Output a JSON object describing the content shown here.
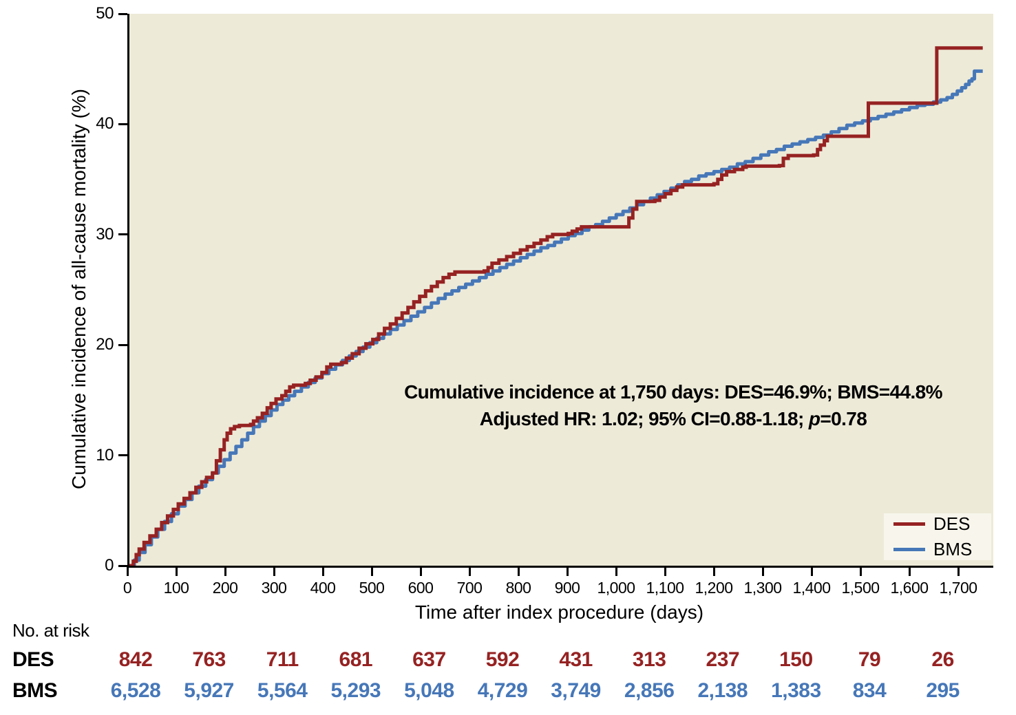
{
  "figure": {
    "background": "#ffffff",
    "plot_background": "#edead8",
    "legend_background": "#f8f6ec",
    "axis_color": "#000000"
  },
  "chart_data": {
    "type": "line",
    "subtype": "step-function-cumulative-incidence",
    "title": "",
    "xlabel": "Time after index procedure (days)",
    "ylabel": "Cumulative incidence of all-cause mortality (%)",
    "xlim": [
      0,
      1768
    ],
    "ylim": [
      0,
      50
    ],
    "grid": false,
    "legend_position": "bottom-right",
    "x_ticks": [
      {
        "value": 0,
        "label": "0"
      },
      {
        "value": 100,
        "label": "100"
      },
      {
        "value": 200,
        "label": "200"
      },
      {
        "value": 300,
        "label": "300"
      },
      {
        "value": 400,
        "label": "400"
      },
      {
        "value": 500,
        "label": "500"
      },
      {
        "value": 600,
        "label": "600"
      },
      {
        "value": 700,
        "label": "700"
      },
      {
        "value": 800,
        "label": "800"
      },
      {
        "value": 900,
        "label": "900"
      },
      {
        "value": 1000,
        "label": "1,000"
      },
      {
        "value": 1100,
        "label": "1,100"
      },
      {
        "value": 1200,
        "label": "1,200"
      },
      {
        "value": 1300,
        "label": "1,300"
      },
      {
        "value": 1400,
        "label": "1,400"
      },
      {
        "value": 1500,
        "label": "1,500"
      },
      {
        "value": 1600,
        "label": "1,600"
      },
      {
        "value": 1700,
        "label": "1,700"
      }
    ],
    "y_ticks": [
      {
        "value": 0,
        "label": "0"
      },
      {
        "value": 10,
        "label": "10"
      },
      {
        "value": 20,
        "label": "20"
      },
      {
        "value": 30,
        "label": "30"
      },
      {
        "value": 40,
        "label": "40"
      },
      {
        "value": 50,
        "label": "50"
      }
    ],
    "annotation": {
      "line1": "Cumulative incidence at 1,750 days: DES=46.9%; BMS=44.8%",
      "line2_prefix": "Adjusted HR: 1.02; 95% CI=0.88-1.18; ",
      "line2_italic": "p",
      "line2_suffix": "=0.78"
    },
    "series": [
      {
        "name": "DES",
        "color": "#962222",
        "stroke_width": 5,
        "points": [
          [
            0,
            0
          ],
          [
            8,
            0.4
          ],
          [
            14,
            1.0
          ],
          [
            20,
            1.5
          ],
          [
            30,
            2.1
          ],
          [
            42,
            2.7
          ],
          [
            55,
            3.3
          ],
          [
            66,
            3.9
          ],
          [
            78,
            4.5
          ],
          [
            90,
            5.1
          ],
          [
            100,
            5.6
          ],
          [
            112,
            6.1
          ],
          [
            124,
            6.6
          ],
          [
            136,
            7.1
          ],
          [
            148,
            7.6
          ],
          [
            158,
            8.0
          ],
          [
            170,
            8.4
          ],
          [
            178,
            9.5
          ],
          [
            186,
            10.5
          ],
          [
            194,
            11.4
          ],
          [
            200,
            12.0
          ],
          [
            207,
            12.4
          ],
          [
            215,
            12.6
          ],
          [
            225,
            12.7
          ],
          [
            248,
            12.8
          ],
          [
            254,
            13.1
          ],
          [
            262,
            13.4
          ],
          [
            272,
            13.8
          ],
          [
            282,
            14.3
          ],
          [
            290,
            14.7
          ],
          [
            300,
            15.1
          ],
          [
            312,
            15.4
          ],
          [
            320,
            15.8
          ],
          [
            328,
            16.2
          ],
          [
            336,
            16.35
          ],
          [
            360,
            16.5
          ],
          [
            370,
            16.8
          ],
          [
            382,
            17.1
          ],
          [
            394,
            17.5
          ],
          [
            404,
            18.0
          ],
          [
            412,
            18.25
          ],
          [
            434,
            18.4
          ],
          [
            444,
            18.8
          ],
          [
            456,
            19.2
          ],
          [
            470,
            19.7
          ],
          [
            484,
            20.1
          ],
          [
            498,
            20.5
          ],
          [
            510,
            21.0
          ],
          [
            522,
            21.5
          ],
          [
            534,
            21.9
          ],
          [
            546,
            22.4
          ],
          [
            558,
            22.9
          ],
          [
            570,
            23.4
          ],
          [
            582,
            23.9
          ],
          [
            594,
            24.4
          ],
          [
            606,
            24.9
          ],
          [
            618,
            25.3
          ],
          [
            630,
            25.7
          ],
          [
            642,
            26.1
          ],
          [
            654,
            26.4
          ],
          [
            666,
            26.6
          ],
          [
            726,
            26.7
          ],
          [
            734,
            27.0
          ],
          [
            742,
            27.4
          ],
          [
            756,
            27.7
          ],
          [
            772,
            28.0
          ],
          [
            786,
            28.3
          ],
          [
            800,
            28.6
          ],
          [
            814,
            28.9
          ],
          [
            828,
            29.2
          ],
          [
            842,
            29.5
          ],
          [
            855,
            29.8
          ],
          [
            866,
            30.0
          ],
          [
            898,
            30.1
          ],
          [
            906,
            30.3
          ],
          [
            916,
            30.5
          ],
          [
            925,
            30.7
          ],
          [
            1018,
            30.7
          ],
          [
            1022,
            31.5
          ],
          [
            1030,
            32.3
          ],
          [
            1038,
            33.0
          ],
          [
            1075,
            33.1
          ],
          [
            1085,
            33.4
          ],
          [
            1096,
            33.7
          ],
          [
            1108,
            34.0
          ],
          [
            1120,
            34.3
          ],
          [
            1132,
            34.5
          ],
          [
            1196,
            34.6
          ],
          [
            1204,
            35.0
          ],
          [
            1212,
            35.4
          ],
          [
            1222,
            35.7
          ],
          [
            1238,
            35.9
          ],
          [
            1255,
            36.1
          ],
          [
            1262,
            36.2
          ],
          [
            1330,
            36.25
          ],
          [
            1338,
            36.9
          ],
          [
            1348,
            37.15
          ],
          [
            1400,
            37.2
          ],
          [
            1408,
            37.7
          ],
          [
            1414,
            38.1
          ],
          [
            1422,
            38.5
          ],
          [
            1428,
            38.9
          ],
          [
            1510,
            38.9
          ],
          [
            1512,
            41.9
          ],
          [
            1650,
            41.9
          ],
          [
            1652,
            46.9
          ],
          [
            1746,
            46.9
          ]
        ]
      },
      {
        "name": "BMS",
        "color": "#4677b8",
        "stroke_width": 5,
        "points": [
          [
            0,
            0
          ],
          [
            10,
            0.5
          ],
          [
            20,
            1.2
          ],
          [
            32,
            1.9
          ],
          [
            45,
            2.6
          ],
          [
            58,
            3.3
          ],
          [
            72,
            4.0
          ],
          [
            86,
            4.7
          ],
          [
            100,
            5.4
          ],
          [
            114,
            6.0
          ],
          [
            128,
            6.6
          ],
          [
            142,
            7.2
          ],
          [
            156,
            7.8
          ],
          [
            170,
            8.4
          ],
          [
            182,
            9.0
          ],
          [
            194,
            9.6
          ],
          [
            206,
            10.2
          ],
          [
            218,
            10.8
          ],
          [
            230,
            11.4
          ],
          [
            242,
            12.0
          ],
          [
            254,
            12.6
          ],
          [
            266,
            13.1
          ],
          [
            278,
            13.6
          ],
          [
            290,
            14.1
          ],
          [
            302,
            14.6
          ],
          [
            314,
            15.0
          ],
          [
            326,
            15.4
          ],
          [
            338,
            15.8
          ],
          [
            352,
            16.2
          ],
          [
            366,
            16.6
          ],
          [
            380,
            17.0
          ],
          [
            394,
            17.4
          ],
          [
            408,
            17.8
          ],
          [
            422,
            18.2
          ],
          [
            436,
            18.6
          ],
          [
            450,
            19.0
          ],
          [
            464,
            19.4
          ],
          [
            478,
            19.8
          ],
          [
            492,
            20.2
          ],
          [
            506,
            20.6
          ],
          [
            520,
            21.0
          ],
          [
            534,
            21.4
          ],
          [
            548,
            21.8
          ],
          [
            562,
            22.2
          ],
          [
            576,
            22.6
          ],
          [
            590,
            23.0
          ],
          [
            604,
            23.4
          ],
          [
            618,
            23.8
          ],
          [
            632,
            24.2
          ],
          [
            646,
            24.6
          ],
          [
            660,
            24.9
          ],
          [
            674,
            25.2
          ],
          [
            688,
            25.5
          ],
          [
            702,
            25.8
          ],
          [
            716,
            26.1
          ],
          [
            730,
            26.4
          ],
          [
            744,
            26.7
          ],
          [
            758,
            27.0
          ],
          [
            772,
            27.3
          ],
          [
            786,
            27.6
          ],
          [
            800,
            27.9
          ],
          [
            814,
            28.2
          ],
          [
            828,
            28.5
          ],
          [
            842,
            28.8
          ],
          [
            856,
            29.0
          ],
          [
            870,
            29.3
          ],
          [
            884,
            29.6
          ],
          [
            898,
            29.9
          ],
          [
            912,
            30.1
          ],
          [
            926,
            30.4
          ],
          [
            940,
            30.7
          ],
          [
            954,
            30.9
          ],
          [
            968,
            31.2
          ],
          [
            982,
            31.5
          ],
          [
            996,
            31.8
          ],
          [
            1010,
            32.1
          ],
          [
            1024,
            32.4
          ],
          [
            1038,
            32.7
          ],
          [
            1052,
            33.0
          ],
          [
            1066,
            33.3
          ],
          [
            1080,
            33.6
          ],
          [
            1094,
            33.9
          ],
          [
            1108,
            34.2
          ],
          [
            1122,
            34.5
          ],
          [
            1136,
            34.8
          ],
          [
            1150,
            35.0
          ],
          [
            1165,
            35.3
          ],
          [
            1180,
            35.5
          ],
          [
            1196,
            35.7
          ],
          [
            1212,
            35.9
          ],
          [
            1228,
            36.1
          ],
          [
            1244,
            36.4
          ],
          [
            1260,
            36.6
          ],
          [
            1276,
            36.9
          ],
          [
            1292,
            37.2
          ],
          [
            1308,
            37.5
          ],
          [
            1324,
            37.7
          ],
          [
            1340,
            38.0
          ],
          [
            1356,
            38.2
          ],
          [
            1372,
            38.4
          ],
          [
            1388,
            38.6
          ],
          [
            1404,
            38.8
          ],
          [
            1420,
            39.0
          ],
          [
            1436,
            39.3
          ],
          [
            1452,
            39.6
          ],
          [
            1468,
            39.9
          ],
          [
            1484,
            40.1
          ],
          [
            1500,
            40.3
          ],
          [
            1516,
            40.5
          ],
          [
            1532,
            40.7
          ],
          [
            1548,
            40.9
          ],
          [
            1564,
            41.1
          ],
          [
            1580,
            41.3
          ],
          [
            1596,
            41.5
          ],
          [
            1612,
            41.7
          ],
          [
            1628,
            41.8
          ],
          [
            1645,
            42.0
          ],
          [
            1660,
            42.2
          ],
          [
            1673,
            42.4
          ],
          [
            1684,
            42.7
          ],
          [
            1694,
            43.0
          ],
          [
            1703,
            43.3
          ],
          [
            1711,
            43.6
          ],
          [
            1718,
            43.9
          ],
          [
            1724,
            44.1
          ],
          [
            1729,
            44.8
          ],
          [
            1746,
            44.8
          ]
        ]
      }
    ]
  },
  "risk_table": {
    "heading": "No. at risk",
    "rows": [
      {
        "label": "DES",
        "color": "#962222",
        "values": [
          "842",
          "763",
          "711",
          "681",
          "637",
          "592",
          "431",
          "313",
          "237",
          "150",
          "79",
          "26"
        ]
      },
      {
        "label": "BMS",
        "color": "#4677b8",
        "values": [
          "6,528",
          "5,927",
          "5,564",
          "5,293",
          "5,048",
          "4,729",
          "3,749",
          "2,856",
          "2,138",
          "1,383",
          "834",
          "295"
        ]
      }
    ]
  }
}
